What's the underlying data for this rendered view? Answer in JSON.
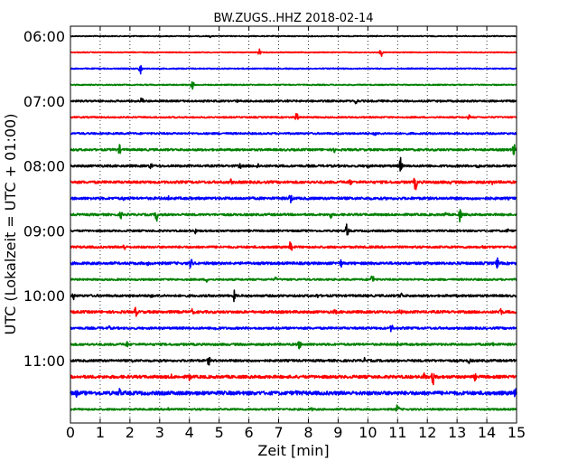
{
  "chart_data": {
    "type": "line",
    "title": "BW.ZUGS..HHZ 2018-02-14",
    "xlabel": "Zeit  [min]",
    "ylabel": "UTC (Lokalzeit = UTC + 01:00)",
    "xlim": [
      0,
      15
    ],
    "x_ticks": [
      "0",
      "1",
      "2",
      "3",
      "4",
      "5",
      "6",
      "7",
      "8",
      "9",
      "10",
      "11",
      "12",
      "13",
      "14",
      "15"
    ],
    "y_ticks": [
      "06:00",
      "07:00",
      "08:00",
      "09:00",
      "10:00",
      "11:00"
    ],
    "grid": "vertical dotted",
    "series_colors": [
      "#000000",
      "#ff0000",
      "#0000ff",
      "#008000"
    ],
    "traces": [
      {
        "start": "06:00",
        "color": "#000000",
        "noise": 0.5,
        "spikes": [
          {
            "t": 4.7,
            "a": 1.5
          },
          {
            "t": 10.3,
            "a": 1
          }
        ]
      },
      {
        "start": "06:15",
        "color": "#ff0000",
        "noise": 0.5,
        "spikes": [
          {
            "t": 6.35,
            "a": 4
          },
          {
            "t": 10.45,
            "a": 5
          }
        ]
      },
      {
        "start": "06:30",
        "color": "#0000ff",
        "noise": 0.6,
        "spikes": [
          {
            "t": 2.35,
            "a": 8
          }
        ]
      },
      {
        "start": "06:45",
        "color": "#008000",
        "noise": 0.6,
        "spikes": [
          {
            "t": 4.1,
            "a": 6
          }
        ]
      },
      {
        "start": "07:00",
        "color": "#000000",
        "noise": 1.0,
        "spikes": [
          {
            "t": 2.4,
            "a": 6
          },
          {
            "t": 9.6,
            "a": 5
          },
          {
            "t": 5.6,
            "a": 2
          },
          {
            "t": 7.3,
            "a": 2
          }
        ]
      },
      {
        "start": "07:15",
        "color": "#ff0000",
        "noise": 0.8,
        "spikes": [
          {
            "t": 7.6,
            "a": 7
          },
          {
            "t": 13.4,
            "a": 3
          }
        ]
      },
      {
        "start": "07:30",
        "color": "#0000ff",
        "noise": 1.0,
        "spikes": [
          {
            "t": 10.25,
            "a": 4
          },
          {
            "t": 11.5,
            "a": 2
          }
        ]
      },
      {
        "start": "07:45",
        "color": "#008000",
        "noise": 1.2,
        "spikes": [
          {
            "t": 1.65,
            "a": 6
          },
          {
            "t": 8.9,
            "a": 5
          },
          {
            "t": 14.9,
            "a": 10
          }
        ]
      },
      {
        "start": "08:00",
        "color": "#000000",
        "noise": 1.2,
        "spikes": [
          {
            "t": 11.1,
            "a": 10
          },
          {
            "t": 2.7,
            "a": 5
          },
          {
            "t": 5.7,
            "a": 4
          },
          {
            "t": 6.3,
            "a": 4
          },
          {
            "t": 10,
            "a": 3
          },
          {
            "t": 13.7,
            "a": 4
          }
        ]
      },
      {
        "start": "08:15",
        "color": "#ff0000",
        "noise": 1.4,
        "spikes": [
          {
            "t": 11.6,
            "a": 11
          },
          {
            "t": 9.4,
            "a": 5
          },
          {
            "t": 5.4,
            "a": 4
          },
          {
            "t": 14.2,
            "a": 4
          },
          {
            "t": 12.8,
            "a": 3
          }
        ]
      },
      {
        "start": "08:30",
        "color": "#0000ff",
        "noise": 1.4,
        "spikes": [
          {
            "t": 7.4,
            "a": 8
          },
          {
            "t": 1.8,
            "a": 3
          },
          {
            "t": 3.3,
            "a": 3
          }
        ]
      },
      {
        "start": "08:45",
        "color": "#008000",
        "noise": 1.2,
        "spikes": [
          {
            "t": 2.9,
            "a": 9
          },
          {
            "t": 13.1,
            "a": 9
          },
          {
            "t": 1.7,
            "a": 5
          },
          {
            "t": 8.75,
            "a": 5
          },
          {
            "t": 12.6,
            "a": 4
          }
        ]
      },
      {
        "start": "09:00",
        "color": "#000000",
        "noise": 1.0,
        "spikes": [
          {
            "t": 9.3,
            "a": 9
          },
          {
            "t": 4.2,
            "a": 4
          },
          {
            "t": 14.7,
            "a": 3
          }
        ]
      },
      {
        "start": "09:15",
        "color": "#ff0000",
        "noise": 1.2,
        "spikes": [
          {
            "t": 7.4,
            "a": 8
          },
          {
            "t": 1.8,
            "a": 5
          },
          {
            "t": 13.9,
            "a": 4
          }
        ]
      },
      {
        "start": "09:30",
        "color": "#0000ff",
        "noise": 1.4,
        "spikes": [
          {
            "t": 4.05,
            "a": 8
          },
          {
            "t": 14.35,
            "a": 7
          },
          {
            "t": 9.1,
            "a": 5
          },
          {
            "t": 2.6,
            "a": 3
          }
        ]
      },
      {
        "start": "09:45",
        "color": "#008000",
        "noise": 1.0,
        "spikes": [
          {
            "t": 10.15,
            "a": 8
          },
          {
            "t": 4.6,
            "a": 4
          },
          {
            "t": 6.9,
            "a": 3
          }
        ]
      },
      {
        "start": "10:00",
        "color": "#000000",
        "noise": 1.2,
        "spikes": [
          {
            "t": 0.1,
            "a": 5
          },
          {
            "t": 5.5,
            "a": 7
          },
          {
            "t": 11.1,
            "a": 6
          },
          {
            "t": 2.7,
            "a": 4
          },
          {
            "t": 8.3,
            "a": 3
          },
          {
            "t": 13.5,
            "a": 3
          }
        ]
      },
      {
        "start": "10:15",
        "color": "#ff0000",
        "noise": 1.4,
        "spikes": [
          {
            "t": 2.2,
            "a": 7
          },
          {
            "t": 14.45,
            "a": 7
          },
          {
            "t": 4.1,
            "a": 4
          },
          {
            "t": 8.9,
            "a": 4
          },
          {
            "t": 11.1,
            "a": 4
          }
        ]
      },
      {
        "start": "10:30",
        "color": "#0000ff",
        "noise": 1.2,
        "spikes": [
          {
            "t": 10.8,
            "a": 6
          },
          {
            "t": 4.9,
            "a": 5
          },
          {
            "t": 1.3,
            "a": 3
          }
        ]
      },
      {
        "start": "10:45",
        "color": "#008000",
        "noise": 1.2,
        "spikes": [
          {
            "t": 7.7,
            "a": 6
          },
          {
            "t": 14.2,
            "a": 5
          },
          {
            "t": 1.9,
            "a": 4
          },
          {
            "t": 11,
            "a": 3
          }
        ]
      },
      {
        "start": "11:00",
        "color": "#000000",
        "noise": 1.2,
        "spikes": [
          {
            "t": 4.65,
            "a": 6
          },
          {
            "t": 9.9,
            "a": 4
          },
          {
            "t": 13.4,
            "a": 4
          },
          {
            "t": 2.1,
            "a": 3
          }
        ]
      },
      {
        "start": "11:15",
        "color": "#ff0000",
        "noise": 1.6,
        "spikes": [
          {
            "t": 12.2,
            "a": 10
          },
          {
            "t": 4,
            "a": 6
          },
          {
            "t": 11.9,
            "a": 6
          },
          {
            "t": 13.6,
            "a": 5
          },
          {
            "t": 3.4,
            "a": 3
          }
        ]
      },
      {
        "start": "11:30",
        "color": "#0000ff",
        "noise": 2.0,
        "spikes": [
          {
            "t": 1.65,
            "a": 7
          },
          {
            "t": 14.95,
            "a": 7
          },
          {
            "t": 0.2,
            "a": 5
          },
          {
            "t": 7.6,
            "a": 4
          },
          {
            "t": 4,
            "a": 3
          }
        ]
      },
      {
        "start": "11:45",
        "color": "#008000",
        "noise": 1.0,
        "spikes": [
          {
            "t": 11,
            "a": 7
          },
          {
            "t": 3.3,
            "a": 3
          },
          {
            "t": 8.1,
            "a": 3
          }
        ]
      }
    ]
  }
}
